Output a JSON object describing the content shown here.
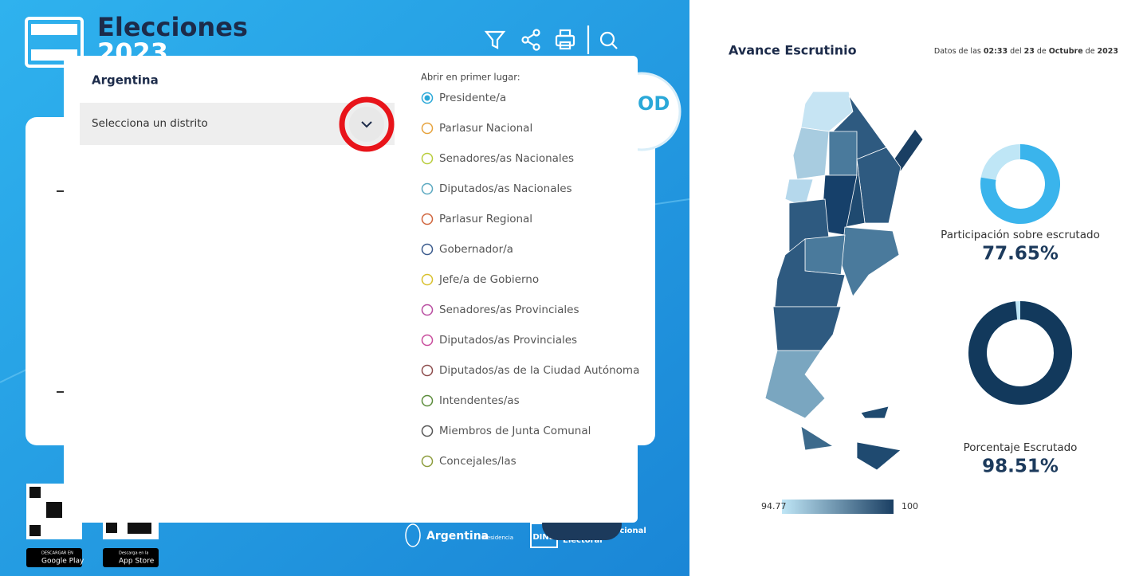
{
  "header": {
    "title": "Elecciones",
    "year": "2023"
  },
  "modal": {
    "district_label": "Argentina",
    "district_select": "Selecciona un distrito",
    "open_first_label": "Abrir en primer lugar:",
    "options": [
      {
        "label": "Presidente/a",
        "color": "#2aa8d8",
        "selected": true
      },
      {
        "label": "Parlasur Nacional",
        "color": "#e6a23c",
        "selected": false
      },
      {
        "label": "Senadores/as Nacionales",
        "color": "#b8cc3a",
        "selected": false
      },
      {
        "label": "Diputados/as Nacionales",
        "color": "#5aa8c0",
        "selected": false
      },
      {
        "label": "Parlasur Regional",
        "color": "#d0643c",
        "selected": false
      },
      {
        "label": "Gobernador/a",
        "color": "#3a5a8c",
        "selected": false
      },
      {
        "label": "Jefe/a de Gobierno",
        "color": "#d8c02c",
        "selected": false
      },
      {
        "label": "Senadores/as Provinciales",
        "color": "#b84ca0",
        "selected": false
      },
      {
        "label": "Diputados/as Provinciales",
        "color": "#c84c9c",
        "selected": false
      },
      {
        "label": "Diputados/as de la Ciudad Autónoma",
        "color": "#8c4c4c",
        "selected": false
      },
      {
        "label": "Intendentes/as",
        "color": "#5c8c3c",
        "selected": false
      },
      {
        "label": "Miembros de Junta Comunal",
        "color": "#555555",
        "selected": false
      },
      {
        "label": "Concejales/las",
        "color": "#8c9c3c",
        "selected": false
      }
    ]
  },
  "footer": {
    "google_small": "DESCARGAR EN",
    "google": "Google Play",
    "apple_small": "Descarga en la",
    "apple": "App Store",
    "gov": "Argentina",
    "gov_sub": "Presidencia",
    "dine_abbr": "DINE",
    "dine_line1": "Dirección Nacional",
    "dine_line2": "Electoral"
  },
  "panel": {
    "title": "Avance Escrutinio",
    "timestamp": {
      "prefix": "Datos de las",
      "time": "02:33",
      "mid": "del",
      "day": "23",
      "of": "de",
      "month": "Octubre",
      "of2": "de",
      "year": "2023"
    },
    "participation": {
      "label": "Participación sobre escrutado",
      "value": 77.65,
      "value_label": "77.65%",
      "color": "#3ab4ec",
      "track": "#bfe6f6"
    },
    "scrutinized": {
      "label": "Porcentaje Escrutado",
      "value": 98.51,
      "value_label": "98.51%",
      "color": "#12395c",
      "track": "#bfe6f6"
    },
    "legend": {
      "min": 94.77,
      "max": 100,
      "color_min": "#bfe6f6",
      "color_max": "#1a3f63"
    }
  }
}
